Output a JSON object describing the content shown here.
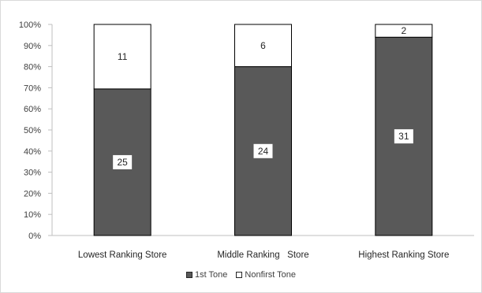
{
  "chart_data": {
    "type": "bar",
    "stacked": true,
    "percent_stacked": true,
    "categories": [
      "Lowest Ranking Store",
      "Middle Ranking   Store",
      "Highest Ranking Store"
    ],
    "series": [
      {
        "name": "1st Tone",
        "values": [
          25,
          24,
          31
        ],
        "color": "#595959"
      },
      {
        "name": "Nonfirst Tone",
        "values": [
          11,
          6,
          2
        ],
        "color": "#ffffff"
      }
    ],
    "yticks": [
      "0%",
      "10%",
      "20%",
      "30%",
      "40%",
      "50%",
      "60%",
      "70%",
      "80%",
      "90%",
      "100%"
    ],
    "ylim": [
      0,
      100
    ],
    "grid": false,
    "legend": "bottom"
  }
}
